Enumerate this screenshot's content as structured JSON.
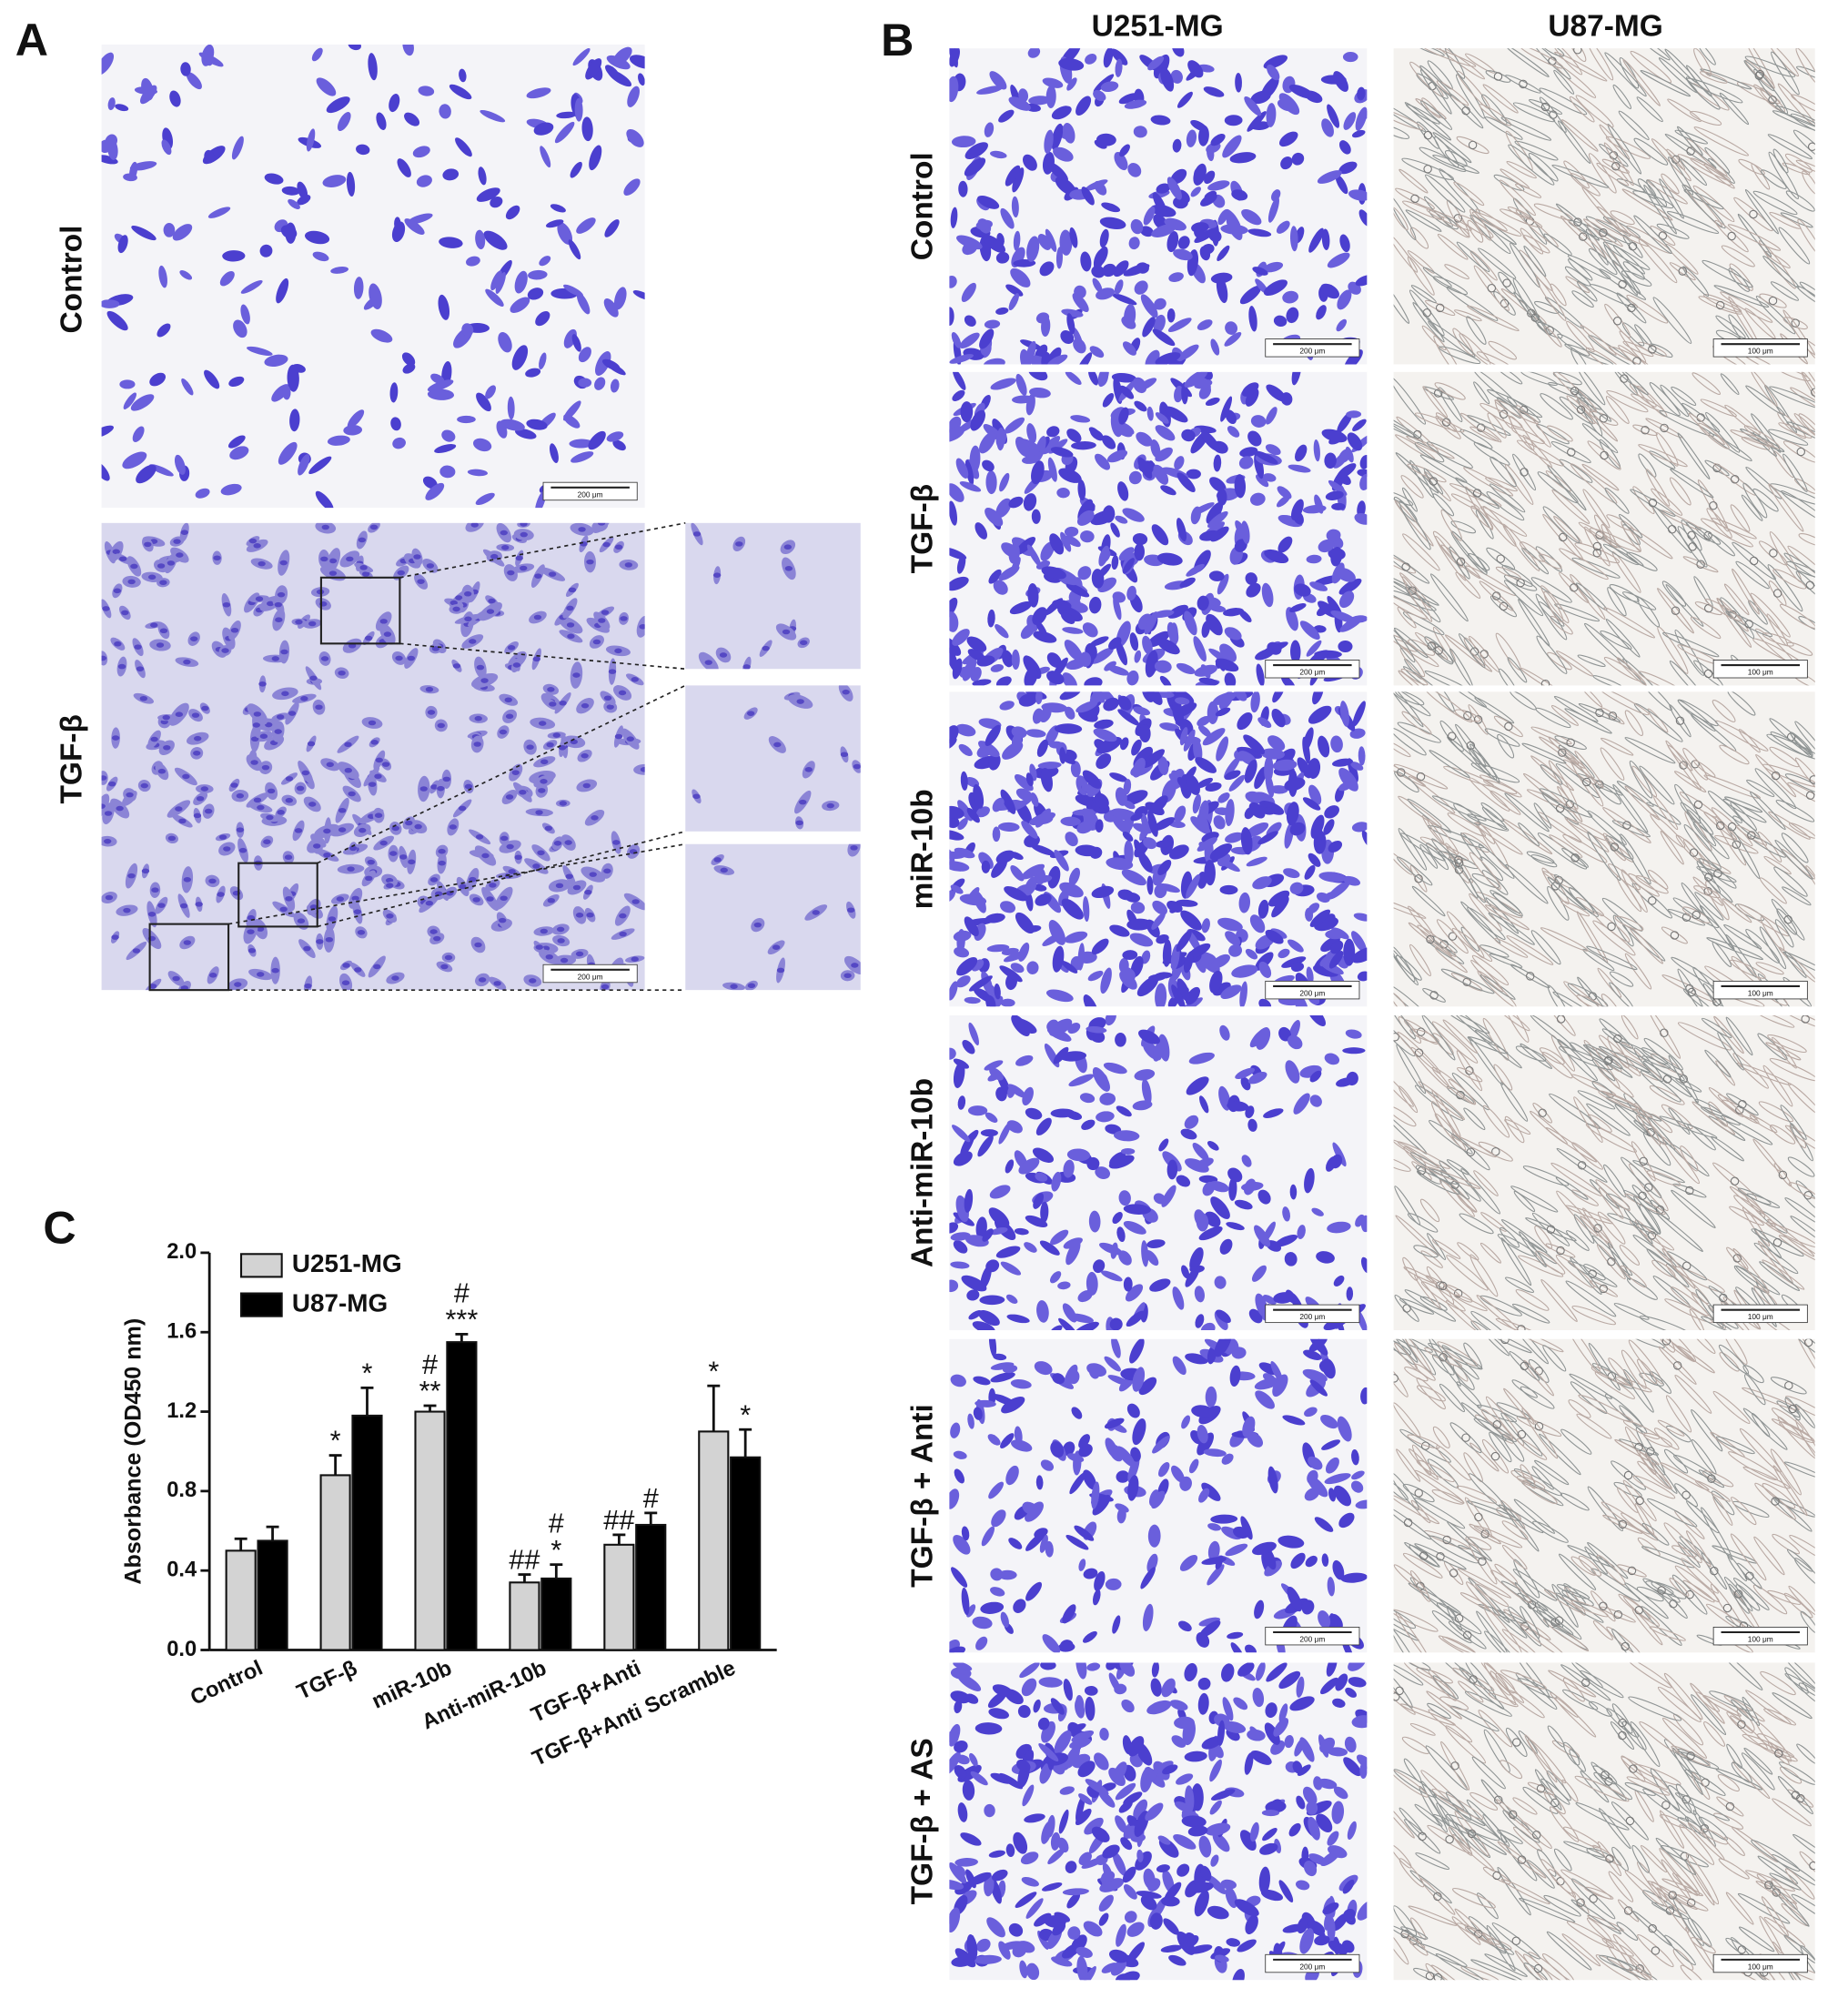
{
  "figure": {
    "panel_a": {
      "label": "A",
      "rows": [
        "Control",
        "TGF-β"
      ],
      "scale_bar": "200 μm"
    },
    "panel_b": {
      "label": "B",
      "columns": [
        "U251-MG",
        "U87-MG"
      ],
      "rows": [
        "Control",
        "TGF-β",
        "miR-10b",
        "Anti-miR-10b",
        "TGF-β + Anti",
        "TGF-β + AS"
      ],
      "scale_bars": [
        "200 μm",
        "100 μm"
      ]
    }
  },
  "chart_data": {
    "type": "bar",
    "panel_label": "C",
    "ylabel": "Absorbance (OD450 nm)",
    "categories": [
      "Control",
      "TGF-β",
      "miR-10b",
      "Anti-miR-10b",
      "TGF-β+Anti",
      "TGF-β+Anti Scramble"
    ],
    "series": [
      {
        "name": "U251-MG",
        "color": "#d3d3d3",
        "values": [
          0.5,
          0.88,
          1.2,
          0.34,
          0.53,
          1.1
        ],
        "errors": [
          0.06,
          0.1,
          0.03,
          0.04,
          0.05,
          0.23
        ],
        "annotations": [
          null,
          [
            "*"
          ],
          [
            "#",
            "**"
          ],
          [
            "##"
          ],
          [
            "##"
          ],
          [
            "*"
          ]
        ]
      },
      {
        "name": "U87-MG",
        "color": "#000000",
        "values": [
          0.55,
          1.18,
          1.55,
          0.36,
          0.63,
          0.97
        ],
        "errors": [
          0.07,
          0.14,
          0.04,
          0.07,
          0.06,
          0.14
        ],
        "annotations": [
          null,
          [
            "*"
          ],
          [
            "#",
            "***"
          ],
          [
            "#",
            "*"
          ],
          [
            "#"
          ],
          [
            "*"
          ]
        ]
      }
    ],
    "ylim": [
      0,
      2.0
    ],
    "yticks": [
      {
        "value": 0,
        "label": "0.0"
      },
      {
        "value": 0.4,
        "label": "0.4"
      },
      {
        "value": 0.8,
        "label": "0.8"
      },
      {
        "value": 1.2,
        "label": "1.2"
      },
      {
        "value": 1.6,
        "label": "1.6"
      },
      {
        "value": 2.0,
        "label": "2.0"
      }
    ],
    "legend": "upper left"
  }
}
